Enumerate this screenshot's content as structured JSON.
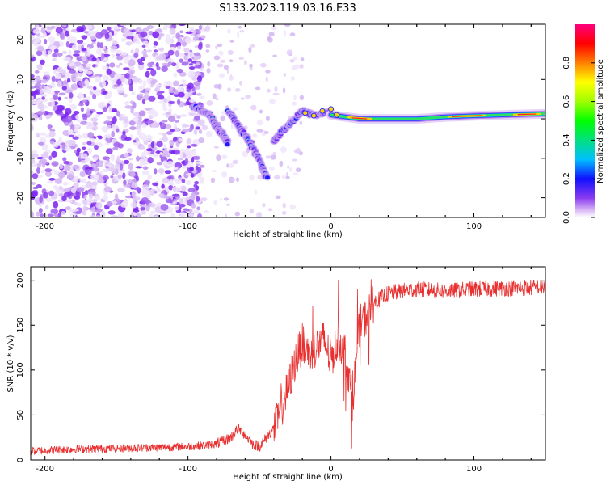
{
  "title": "S133.2023.119.03.16.E33",
  "chart_data": [
    {
      "type": "heatmap",
      "title": "S133.2023.119.03.16.E33",
      "xlabel": "Height of straight line (km)",
      "ylabel": "Frequency (Hz)",
      "xlim": [
        -210,
        150
      ],
      "ylim": [
        -25,
        24
      ],
      "xticks": [
        -200,
        -100,
        0,
        100
      ],
      "yticks": [
        -20,
        -10,
        0,
        10,
        20
      ],
      "colorbar": {
        "label": "Normalized spectral amplitude",
        "range": [
          0.0,
          1.0
        ],
        "ticks": [
          0.0,
          0.2,
          0.4,
          0.6,
          0.8
        ]
      },
      "features": {
        "noise_region_x": [
          -210,
          -90
        ],
        "sparse_region_x": [
          -90,
          -20
        ],
        "v_shape_branches": [
          {
            "name": "branch-1",
            "points": [
              [
                -95,
                3
              ],
              [
                -85,
                1
              ],
              [
                -78,
                -3
              ],
              [
                -72,
                -6
              ]
            ]
          },
          {
            "name": "branch-2",
            "points": [
              [
                -72,
                2
              ],
              [
                -62,
                -3
              ],
              [
                -55,
                -7
              ],
              [
                -48,
                -12
              ],
              [
                -45,
                -15
              ]
            ]
          },
          {
            "name": "branch-3",
            "points": [
              [
                -40,
                -6
              ],
              [
                -34,
                -3
              ],
              [
                -28,
                -1
              ],
              [
                -20,
                2
              ],
              [
                -10,
                1
              ],
              [
                0,
                2
              ]
            ]
          }
        ],
        "tone_line": [
          [
            0,
            1
          ],
          [
            20,
            0
          ],
          [
            40,
            0
          ],
          [
            60,
            0
          ],
          [
            80,
            0.5
          ],
          [
            100,
            0.8
          ],
          [
            120,
            1
          ],
          [
            140,
            1.2
          ],
          [
            150,
            1.3
          ]
        ]
      }
    },
    {
      "type": "line",
      "xlabel": "Height of straight line (km)",
      "ylabel": "SNR (10 * v/v)",
      "xlim": [
        -210,
        150
      ],
      "ylim": [
        0,
        215
      ],
      "xticks": [
        -200,
        -100,
        0,
        100
      ],
      "yticks": [
        0,
        50,
        100,
        150,
        200
      ],
      "series": [
        {
          "name": "SNR",
          "color": "#e83030",
          "x": [
            -210,
            -180,
            -150,
            -120,
            -100,
            -90,
            -80,
            -70,
            -65,
            -60,
            -55,
            -50,
            -45,
            -40,
            -35,
            -30,
            -25,
            -20,
            -15,
            -10,
            -5,
            0,
            5,
            10,
            15,
            20,
            25,
            30,
            40,
            50,
            60,
            80,
            100,
            120,
            150
          ],
          "y": [
            10,
            12,
            13,
            14,
            15,
            16,
            18,
            25,
            35,
            28,
            18,
            15,
            25,
            35,
            55,
            80,
            110,
            130,
            120,
            125,
            135,
            110,
            135,
            120,
            65,
            150,
            160,
            175,
            185,
            188,
            190,
            188,
            190,
            191,
            192
          ]
        }
      ]
    }
  ]
}
